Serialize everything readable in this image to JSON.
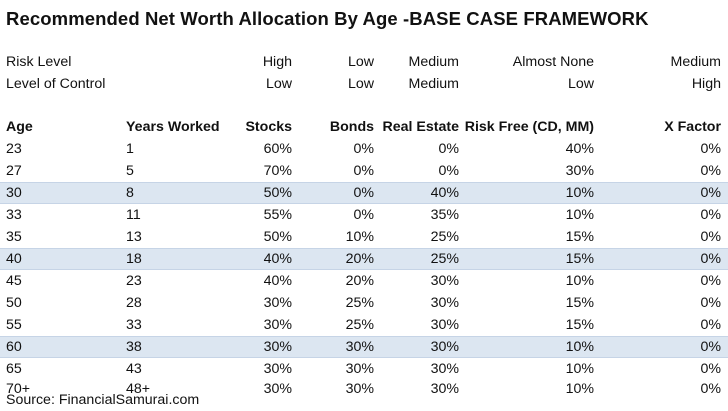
{
  "title": "Recommended Net Worth Allocation By Age -BASE CASE FRAMEWORK",
  "meta_rows": [
    {
      "label": "Risk Level",
      "stocks": "High",
      "bonds": "Low",
      "real_estate": "Medium",
      "risk_free": "Almost None",
      "x_factor": "Medium"
    },
    {
      "label": "Level of Control",
      "stocks": "Low",
      "bonds": "Low",
      "real_estate": "Medium",
      "risk_free": "Low",
      "x_factor": "High"
    }
  ],
  "headers": {
    "age": "Age",
    "years_worked": "Years Worked",
    "stocks": "Stocks",
    "bonds": "Bonds",
    "real_estate": "Real Estate",
    "risk_free": "Risk Free (CD, MM)",
    "x_factor": "X Factor"
  },
  "rows": [
    {
      "age": "23",
      "years": "1",
      "stocks": "60%",
      "bonds": "0%",
      "real_estate": "0%",
      "risk_free": "40%",
      "x_factor": "0%",
      "shaded": false
    },
    {
      "age": "27",
      "years": "5",
      "stocks": "70%",
      "bonds": "0%",
      "real_estate": "0%",
      "risk_free": "30%",
      "x_factor": "0%",
      "shaded": false
    },
    {
      "age": "30",
      "years": "8",
      "stocks": "50%",
      "bonds": "0%",
      "real_estate": "40%",
      "risk_free": "10%",
      "x_factor": "0%",
      "shaded": true
    },
    {
      "age": "33",
      "years": "11",
      "stocks": "55%",
      "bonds": "0%",
      "real_estate": "35%",
      "risk_free": "10%",
      "x_factor": "0%",
      "shaded": false
    },
    {
      "age": "35",
      "years": "13",
      "stocks": "50%",
      "bonds": "10%",
      "real_estate": "25%",
      "risk_free": "15%",
      "x_factor": "0%",
      "shaded": false
    },
    {
      "age": "40",
      "years": "18",
      "stocks": "40%",
      "bonds": "20%",
      "real_estate": "25%",
      "risk_free": "15%",
      "x_factor": "0%",
      "shaded": true
    },
    {
      "age": "45",
      "years": "23",
      "stocks": "40%",
      "bonds": "20%",
      "real_estate": "30%",
      "risk_free": "10%",
      "x_factor": "0%",
      "shaded": false
    },
    {
      "age": "50",
      "years": "28",
      "stocks": "30%",
      "bonds": "25%",
      "real_estate": "30%",
      "risk_free": "15%",
      "x_factor": "0%",
      "shaded": false
    },
    {
      "age": "55",
      "years": "33",
      "stocks": "30%",
      "bonds": "25%",
      "real_estate": "30%",
      "risk_free": "15%",
      "x_factor": "0%",
      "shaded": false
    },
    {
      "age": "60",
      "years": "38",
      "stocks": "30%",
      "bonds": "30%",
      "real_estate": "30%",
      "risk_free": "10%",
      "x_factor": "0%",
      "shaded": true
    },
    {
      "age": "65",
      "years": "43",
      "stocks": "30%",
      "bonds": "30%",
      "real_estate": "30%",
      "risk_free": "10%",
      "x_factor": "0%",
      "shaded": false
    },
    {
      "age": "70+",
      "years": "48+",
      "stocks": "30%",
      "bonds": "30%",
      "real_estate": "30%",
      "risk_free": "10%",
      "x_factor": "0%",
      "shaded": false
    }
  ],
  "source": "Source: FinancialSamurai.com",
  "colors": {
    "shade": "#dce6f1",
    "text": "#111111"
  }
}
